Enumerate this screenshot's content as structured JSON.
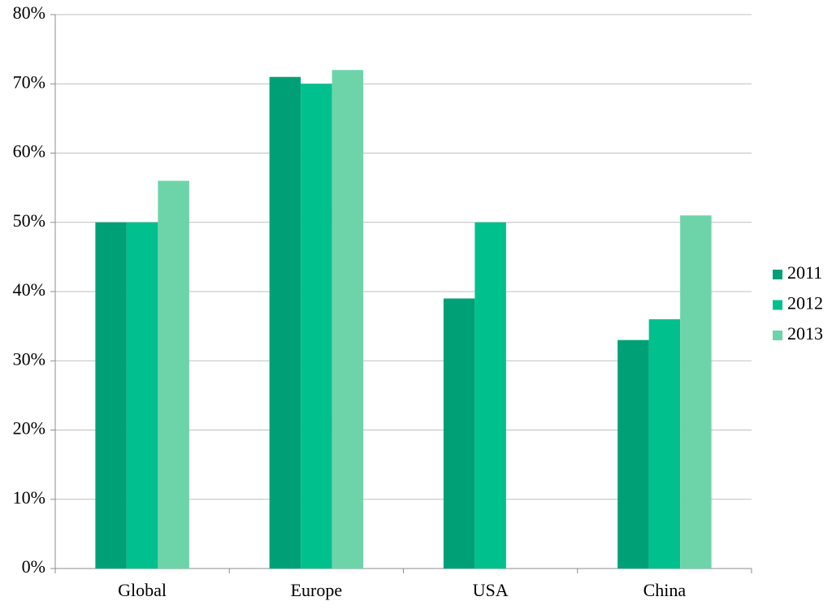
{
  "chart_data": {
    "type": "bar",
    "categories": [
      "Global",
      "Europe",
      "USA",
      "China"
    ],
    "series": [
      {
        "name": "2011",
        "color": "#00a077",
        "values": [
          50,
          71,
          39,
          33
        ]
      },
      {
        "name": "2012",
        "color": "#00c08d",
        "values": [
          50,
          70,
          50,
          36
        ]
      },
      {
        "name": "2013",
        "color": "#6dd4aa",
        "values": [
          56,
          72,
          null,
          51
        ]
      }
    ],
    "ylim": [
      0,
      80
    ],
    "yticks": [
      {
        "value": 0,
        "label": "0%"
      },
      {
        "value": 10,
        "label": "10%"
      },
      {
        "value": 20,
        "label": "20%"
      },
      {
        "value": 30,
        "label": "30%"
      },
      {
        "value": 40,
        "label": "40%"
      },
      {
        "value": 50,
        "label": "50%"
      },
      {
        "value": 60,
        "label": "60%"
      },
      {
        "value": 70,
        "label": "70%"
      },
      {
        "value": 80,
        "label": "80%"
      }
    ],
    "grid": true,
    "legend": "right"
  }
}
